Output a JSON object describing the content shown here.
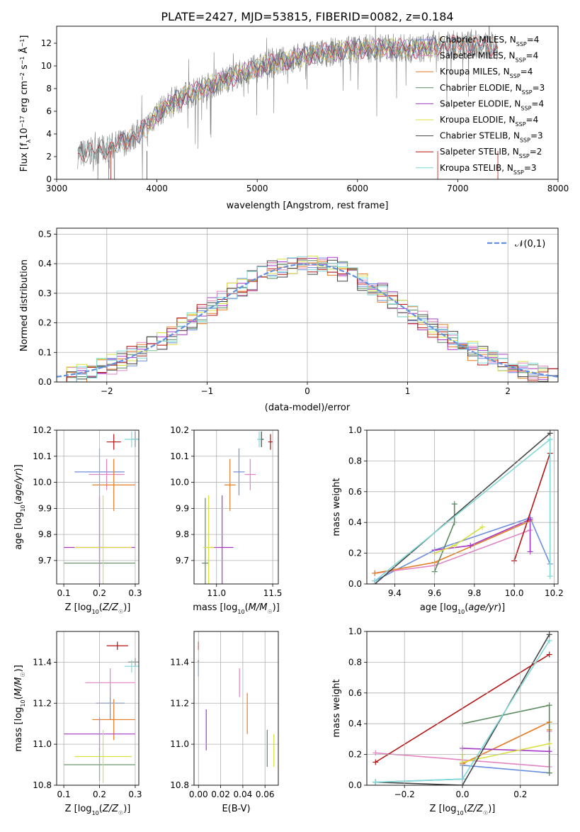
{
  "title": "PLATE=2427, MJD=53815, FIBERID=0082, z=0.184",
  "colors": {
    "Chabrier MILES": "#6a8ede",
    "Salpeter MILES": "#e283c4",
    "Kroupa MILES": "#e57c23",
    "Chabrier ELODIE": "#5a8a5e",
    "Salpeter ELODIE": "#a338c4",
    "Kroupa ELODIE": "#d9e23c",
    "Chabrier STELIB": "#444444",
    "Salpeter STELIB": "#b31313",
    "Kroupa STELIB": "#7fd9d6",
    "normal": "#6490e0",
    "spectrum": "#808080"
  },
  "chart_data": [
    {
      "id": "spectrum",
      "type": "line",
      "xlabel": "wavelength [Angstrom, rest frame]",
      "ylabel": "Flux [f_λ 10^-17 erg cm^-2 s^-1 Å^-1]",
      "xlim": [
        3000,
        8000
      ],
      "ylim": [
        0,
        13.5
      ],
      "xticks": [
        "3000",
        "4000",
        "5000",
        "6000",
        "7000",
        "8000"
      ],
      "yticks": [
        "0",
        "2",
        "4",
        "6",
        "8",
        "10",
        "12"
      ],
      "legend": [
        {
          "label": "Chabrier MILES, N_SSP=4",
          "key": "Chabrier MILES"
        },
        {
          "label": "Salpeter MILES, N_SSP=4",
          "key": "Salpeter MILES"
        },
        {
          "label": "Kroupa MILES, N_SSP=4",
          "key": "Kroupa MILES"
        },
        {
          "label": "Chabrier ELODIE, N_SSP=3",
          "key": "Chabrier ELODIE"
        },
        {
          "label": "Salpeter ELODIE, N_SSP=4",
          "key": "Salpeter ELODIE"
        },
        {
          "label": "Kroupa ELODIE, N_SSP=4",
          "key": "Kroupa ELODIE"
        },
        {
          "label": "Chabrier STELIB, N_SSP=3",
          "key": "Chabrier STELIB"
        },
        {
          "label": "Salpeter STELIB, N_SSP=2",
          "key": "Salpeter STELIB"
        },
        {
          "label": "Kroupa STELIB, N_SSP=3",
          "key": "Kroupa STELIB"
        }
      ],
      "legend_position": "upper right",
      "continuum": [
        [
          3210,
          2.2
        ],
        [
          3500,
          2.7
        ],
        [
          3700,
          3.4
        ],
        [
          3900,
          4.6
        ],
        [
          4000,
          5.8
        ],
        [
          4200,
          7.0
        ],
        [
          4500,
          8.2
        ],
        [
          4800,
          9.2
        ],
        [
          5100,
          10.1
        ],
        [
          5400,
          10.7
        ],
        [
          5700,
          11.2
        ],
        [
          6000,
          11.5
        ],
        [
          6300,
          11.6
        ],
        [
          6600,
          11.5
        ],
        [
          6900,
          11.8
        ],
        [
          7200,
          11.9
        ],
        [
          7350,
          11.7
        ],
        [
          7400,
          11.4
        ]
      ],
      "data_start": 3210,
      "data_end": 7400
    },
    {
      "id": "residuals",
      "type": "histogram",
      "xlabel": "(data-model)/error",
      "ylabel": "Normed distribution",
      "xlim": [
        -2.5,
        2.5
      ],
      "ylim": [
        0,
        0.52
      ],
      "xticks": [
        "−2",
        "−1",
        "0",
        "1",
        "2"
      ],
      "yticks": [
        "0.0",
        "0.1",
        "0.2",
        "0.3",
        "0.4",
        "0.5"
      ],
      "bin_width": 0.1,
      "legend_label": "𝒩(0,1)",
      "legend_position": "upper right",
      "grid": true
    },
    {
      "id": "age_vs_Z",
      "type": "errorbar",
      "xlabel": "Z [log10(Z/Z☉)]",
      "ylabel": "age [log10(age/yr)]",
      "xlim": [
        0.08,
        0.31
      ],
      "ylim": [
        9.61,
        10.2
      ],
      "xticks": [
        "0.1",
        "0.2",
        "0.3"
      ],
      "yticks": [
        "9.7",
        "9.8",
        "9.9",
        "10.0",
        "10.1",
        "10.2"
      ],
      "points": [
        {
          "key": "Chabrier MILES",
          "x": 0.2,
          "xerr": 0.07,
          "y": 10.04,
          "yerr": 0.09
        },
        {
          "key": "Salpeter MILES",
          "x": 0.22,
          "xerr": 0.05,
          "y": 10.03,
          "yerr": 0.06
        },
        {
          "key": "Kroupa MILES",
          "x": 0.24,
          "xerr": 0.06,
          "y": 9.99,
          "yerr": 0.1
        },
        {
          "key": "Chabrier ELODIE",
          "x": 0.2,
          "xerr": 0.1,
          "y": 9.69,
          "yerr": 0.25
        },
        {
          "key": "Salpeter ELODIE",
          "x": 0.2,
          "xerr": 0.1,
          "y": 9.75,
          "yerr": 0.2
        },
        {
          "key": "Kroupa ELODIE",
          "x": 0.21,
          "xerr": 0.08,
          "y": 9.75,
          "yerr": 0.2
        },
        {
          "key": "Chabrier STELIB",
          "x": 0.3,
          "xerr": 0.01,
          "y": 10.165,
          "yerr": 0.03
        },
        {
          "key": "Salpeter STELIB",
          "x": 0.24,
          "xerr": 0.02,
          "y": 10.155,
          "yerr": 0.03
        },
        {
          "key": "Kroupa STELIB",
          "x": 0.29,
          "xerr": 0.02,
          "y": 10.165,
          "yerr": 0.03
        }
      ]
    },
    {
      "id": "age_vs_mass",
      "type": "errorbar",
      "xlabel": "mass [log10(M/M☉)]",
      "xlim": [
        10.8,
        11.55
      ],
      "ylim": [
        9.61,
        10.2
      ],
      "xticks": [
        "10.5",
        "11.0",
        "11.5"
      ],
      "xtick_values": [
        10.5,
        11.0,
        11.5
      ],
      "yticks": [
        "9.7",
        "9.8",
        "9.9",
        "10.0",
        "10.1",
        "10.2"
      ],
      "points": [
        {
          "key": "Chabrier MILES",
          "x": 11.2,
          "xerr": 0.05,
          "y": 10.04,
          "yerr": 0.09
        },
        {
          "key": "Salpeter MILES",
          "x": 11.3,
          "xerr": 0.05,
          "y": 10.03,
          "yerr": 0.06
        },
        {
          "key": "Kroupa MILES",
          "x": 11.12,
          "xerr": 0.05,
          "y": 9.99,
          "yerr": 0.1
        },
        {
          "key": "Chabrier ELODIE",
          "x": 10.9,
          "xerr": 0.03,
          "y": 9.69,
          "yerr": 0.25
        },
        {
          "key": "Salpeter ELODIE",
          "x": 11.05,
          "xerr": 0.1,
          "y": 9.75,
          "yerr": 0.2
        },
        {
          "key": "Kroupa ELODIE",
          "x": 10.93,
          "xerr": 0.05,
          "y": 9.75,
          "yerr": 0.2
        },
        {
          "key": "Chabrier STELIB",
          "x": 11.4,
          "xerr": 0.02,
          "y": 10.165,
          "yerr": 0.03
        },
        {
          "key": "Salpeter STELIB",
          "x": 11.48,
          "xerr": 0.02,
          "y": 10.155,
          "yerr": 0.03
        },
        {
          "key": "Kroupa STELIB",
          "x": 11.38,
          "xerr": 0.02,
          "y": 10.165,
          "yerr": 0.03
        }
      ]
    },
    {
      "id": "weight_vs_age",
      "type": "line",
      "xlabel": "age [log10(age/yr)]",
      "ylabel": "mass weight",
      "xlim": [
        9.26,
        10.22
      ],
      "ylim": [
        0,
        1
      ],
      "xticks": [
        "9.4",
        "9.6",
        "9.8",
        "10.0",
        "10.2"
      ],
      "yticks": [
        "0.0",
        "0.2",
        "0.4",
        "0.6",
        "0.8",
        "1.0"
      ],
      "grid": true,
      "series": [
        {
          "key": "Chabrier MILES",
          "x": [
            9.3,
            9.6,
            10.08,
            10.18
          ],
          "y": [
            0.02,
            0.22,
            0.43,
            0.13
          ]
        },
        {
          "key": "Salpeter MILES",
          "x": [
            9.3,
            9.6,
            10.08
          ],
          "y": [
            0.07,
            0.12,
            0.35
          ]
        },
        {
          "key": "Kroupa MILES",
          "x": [
            9.3,
            9.6,
            10.08
          ],
          "y": [
            0.07,
            0.14,
            0.41
          ]
        },
        {
          "key": "Chabrier ELODIE",
          "x": [
            9.6,
            9.7,
            9.7
          ],
          "y": [
            0.08,
            0.4,
            0.52
          ]
        },
        {
          "key": "Salpeter ELODIE",
          "x": [
            9.6,
            9.78,
            10.08,
            10.08
          ],
          "y": [
            0.22,
            0.25,
            0.42,
            0.21
          ]
        },
        {
          "key": "Kroupa ELODIE",
          "x": [
            9.6,
            9.7,
            9.84
          ],
          "y": [
            0.2,
            0.25,
            0.37
          ]
        },
        {
          "key": "Chabrier STELIB",
          "x": [
            9.3,
            10.18
          ],
          "y": [
            0.0,
            0.98
          ]
        },
        {
          "key": "Salpeter STELIB",
          "x": [
            10.0,
            10.18
          ],
          "y": [
            0.15,
            0.85
          ]
        },
        {
          "key": "Kroupa STELIB",
          "x": [
            9.3,
            10.18,
            10.18
          ],
          "y": [
            0.02,
            0.94,
            0.05
          ]
        }
      ]
    },
    {
      "id": "mass_vs_Z",
      "type": "errorbar",
      "xlabel": "Z [log10(Z/Z☉)]",
      "ylabel": "mass [log10(M/M☉)]",
      "xlim": [
        0.08,
        0.31
      ],
      "ylim": [
        10.8,
        11.55
      ],
      "xticks": [
        "0.1",
        "0.2",
        "0.3"
      ],
      "yticks": [
        "10.8",
        "11.0",
        "11.2",
        "11.4"
      ],
      "points": [
        {
          "key": "Chabrier MILES",
          "x": 0.23,
          "xerr": 0.04,
          "y": 11.2,
          "yerr": 0.08
        },
        {
          "key": "Salpeter MILES",
          "x": 0.23,
          "xerr": 0.07,
          "y": 11.3,
          "yerr": 0.07
        },
        {
          "key": "Kroupa MILES",
          "x": 0.24,
          "xerr": 0.06,
          "y": 11.12,
          "yerr": 0.1
        },
        {
          "key": "Chabrier ELODIE",
          "x": 0.2,
          "xerr": 0.1,
          "y": 10.9,
          "yerr": 0.08
        },
        {
          "key": "Salpeter ELODIE",
          "x": 0.2,
          "xerr": 0.1,
          "y": 11.05,
          "yerr": 0.08
        },
        {
          "key": "Kroupa ELODIE",
          "x": 0.21,
          "xerr": 0.08,
          "y": 10.94,
          "yerr": 0.13
        },
        {
          "key": "Chabrier STELIB",
          "x": 0.3,
          "xerr": 0.02,
          "y": 11.4,
          "yerr": 0.02
        },
        {
          "key": "Salpeter STELIB",
          "x": 0.25,
          "xerr": 0.03,
          "y": 11.48,
          "yerr": 0.02
        },
        {
          "key": "Kroupa STELIB",
          "x": 0.29,
          "xerr": 0.02,
          "y": 11.38,
          "yerr": 0.03
        }
      ]
    },
    {
      "id": "mass_vs_ebv",
      "type": "errorbar",
      "xlabel": "E(B-V)",
      "xlim": [
        -0.004,
        0.072
      ],
      "ylim": [
        10.8,
        11.55
      ],
      "xticks": [
        "0.00",
        "0.02",
        "0.04",
        "0.06"
      ],
      "xtick_values": [
        0.0,
        0.02,
        0.04,
        0.06
      ],
      "yticks": [
        "10.8",
        "11.0",
        "11.2",
        "11.4"
      ],
      "points": [
        {
          "key": "Chabrier MILES",
          "x": 0.0,
          "xerr": 0.0,
          "y": 11.37,
          "yerr": 0.04
        },
        {
          "key": "Salpeter MILES",
          "x": 0.037,
          "xerr": 0.0,
          "y": 11.3,
          "yerr": 0.07
        },
        {
          "key": "Kroupa MILES",
          "x": 0.044,
          "xerr": 0.0,
          "y": 11.15,
          "yerr": 0.1
        },
        {
          "key": "Chabrier ELODIE",
          "x": 0.062,
          "xerr": 0.0,
          "y": 10.98,
          "yerr": 0.09
        },
        {
          "key": "Salpeter ELODIE",
          "x": 0.007,
          "xerr": 0.0,
          "y": 11.07,
          "yerr": 0.1
        },
        {
          "key": "Kroupa ELODIE",
          "x": 0.068,
          "xerr": 0.0,
          "y": 10.97,
          "yerr": 0.08
        },
        {
          "key": "Chabrier STELIB",
          "x": 0.0,
          "xerr": 0.0,
          "y": 11.4,
          "yerr": 0.01
        },
        {
          "key": "Salpeter STELIB",
          "x": 0.0,
          "xerr": 0.0,
          "y": 11.48,
          "yerr": 0.02
        },
        {
          "key": "Kroupa STELIB",
          "x": 0.0,
          "xerr": 0.0,
          "y": 11.37,
          "yerr": 0.03
        }
      ]
    },
    {
      "id": "weight_vs_Z",
      "type": "line",
      "xlabel": "Z [log10(Z/Z☉)]",
      "ylabel": "mass weight",
      "xlim": [
        -0.33,
        0.33
      ],
      "ylim": [
        0,
        1
      ],
      "xticks": [
        "−0.2",
        "0.0",
        "0.2"
      ],
      "xtick_values": [
        -0.2,
        0.0,
        0.2
      ],
      "yticks": [
        "0.0",
        "0.2",
        "0.4",
        "0.6",
        "0.8",
        "1.0"
      ],
      "grid": true,
      "series": [
        {
          "key": "Chabrier MILES",
          "x": [
            -0.3,
            0.0,
            0.0,
            0.3
          ],
          "y": [
            0.02,
            0.04,
            0.13,
            0.08
          ]
        },
        {
          "key": "Salpeter MILES",
          "x": [
            -0.3,
            0.3,
            0.3
          ],
          "y": [
            0.21,
            0.12,
            0.35
          ]
        },
        {
          "key": "Kroupa MILES",
          "x": [
            0.0,
            0.3,
            0.3
          ],
          "y": [
            0.14,
            0.41,
            0.36
          ]
        },
        {
          "key": "Chabrier ELODIE",
          "x": [
            0.0,
            0.3,
            0.3
          ],
          "y": [
            0.4,
            0.52,
            0.08
          ]
        },
        {
          "key": "Salpeter ELODIE",
          "x": [
            0.0,
            0.3
          ],
          "y": [
            0.24,
            0.22
          ]
        },
        {
          "key": "Kroupa ELODIE",
          "x": [
            0.0,
            0.0,
            0.3
          ],
          "y": [
            0.2,
            0.15,
            0.27
          ]
        },
        {
          "key": "Chabrier STELIB",
          "x": [
            -0.3,
            0.0,
            0.3
          ],
          "y": [
            0.02,
            0.0,
            0.98
          ]
        },
        {
          "key": "Salpeter STELIB",
          "x": [
            -0.3,
            0.3
          ],
          "y": [
            0.15,
            0.85
          ]
        },
        {
          "key": "Kroupa STELIB",
          "x": [
            -0.3,
            0.0,
            0.3
          ],
          "y": [
            0.02,
            0.04,
            0.94
          ]
        }
      ]
    }
  ]
}
